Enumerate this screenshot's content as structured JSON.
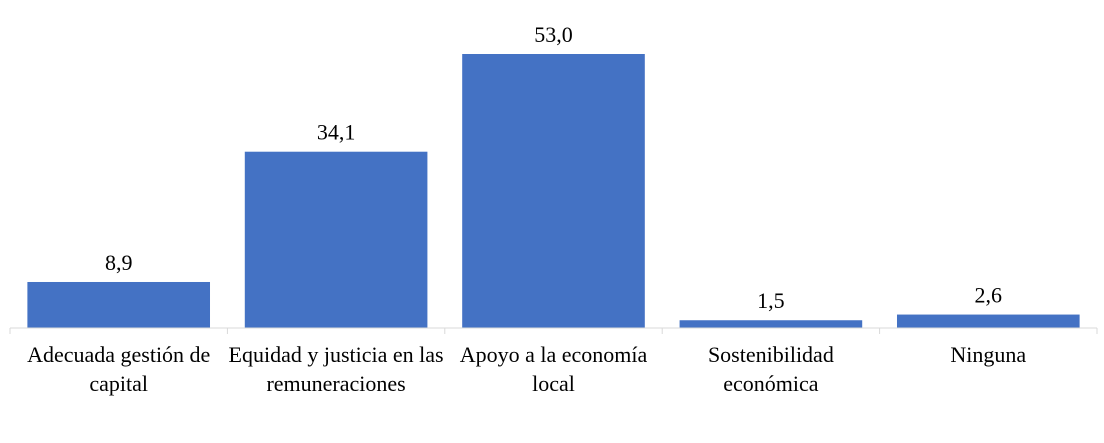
{
  "chart_data": {
    "type": "bar",
    "categories": [
      "Adecuada gestión de capital",
      "Equidad y justicia en las remuneraciones",
      "Apoyo a la economía local",
      "Sostenibilidad económica",
      "Ninguna"
    ],
    "values": [
      8.9,
      34.1,
      53.0,
      1.5,
      2.6
    ],
    "value_labels": [
      "8,9",
      "34,1",
      "53,0",
      "1,5",
      "2,6"
    ],
    "color": "#4472c4"
  }
}
